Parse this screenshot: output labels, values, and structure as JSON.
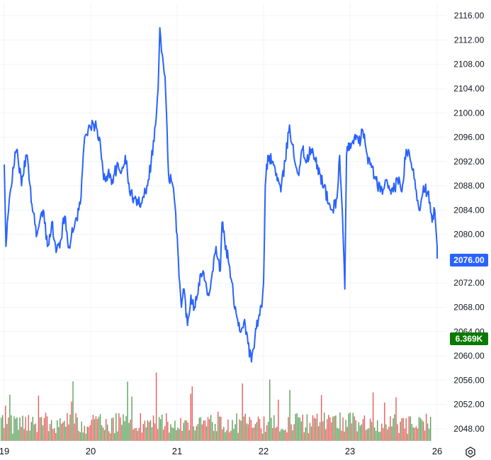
{
  "chart_data": {
    "type": "line",
    "x_labels": [
      "19",
      "20",
      "21",
      "22",
      "23",
      "26"
    ],
    "ylim": [
      2046,
      2118
    ],
    "y_ticks": [
      "2116.00",
      "2112.00",
      "2108.00",
      "2104.00",
      "2100.00",
      "2096.00",
      "2092.00",
      "2088.00",
      "2084.00",
      "2080.00",
      "2076.00",
      "2072.00",
      "2068.00",
      "2064.00",
      "2060.00",
      "2056.00",
      "2052.00",
      "2048.00"
    ],
    "price_anchors": [
      [
        0,
        2091.5
      ],
      [
        0.02,
        2078
      ],
      [
        0.05,
        2084
      ],
      [
        0.1,
        2091
      ],
      [
        0.15,
        2094
      ],
      [
        0.2,
        2088
      ],
      [
        0.25,
        2093
      ],
      [
        0.28,
        2091
      ],
      [
        0.32,
        2085
      ],
      [
        0.38,
        2080
      ],
      [
        0.45,
        2084
      ],
      [
        0.5,
        2078
      ],
      [
        0.55,
        2082
      ],
      [
        0.6,
        2077
      ],
      [
        0.65,
        2079
      ],
      [
        0.7,
        2083
      ],
      [
        0.75,
        2078
      ],
      [
        0.82,
        2082
      ],
      [
        0.88,
        2085
      ],
      [
        0.93,
        2096
      ],
      [
        0.98,
        2098
      ],
      [
        1.0,
        2097.5
      ],
      [
        1.05,
        2098
      ],
      [
        1.1,
        2096
      ],
      [
        1.15,
        2089
      ],
      [
        1.2,
        2090
      ],
      [
        1.25,
        2089
      ],
      [
        1.3,
        2091
      ],
      [
        1.35,
        2090
      ],
      [
        1.4,
        2093
      ],
      [
        1.45,
        2087
      ],
      [
        1.5,
        2086
      ],
      [
        1.55,
        2085
      ],
      [
        1.6,
        2086
      ],
      [
        1.65,
        2088
      ],
      [
        1.7,
        2092
      ],
      [
        1.75,
        2098
      ],
      [
        1.78,
        2104
      ],
      [
        1.8,
        2114
      ],
      [
        1.82,
        2110
      ],
      [
        1.86,
        2106
      ],
      [
        1.9,
        2090
      ],
      [
        1.95,
        2088
      ],
      [
        2.0,
        2080
      ],
      [
        2.03,
        2072
      ],
      [
        2.05,
        2068
      ],
      [
        2.08,
        2071
      ],
      [
        2.12,
        2065
      ],
      [
        2.16,
        2070
      ],
      [
        2.2,
        2068
      ],
      [
        2.25,
        2072
      ],
      [
        2.3,
        2074
      ],
      [
        2.35,
        2070
      ],
      [
        2.4,
        2073
      ],
      [
        2.45,
        2078
      ],
      [
        2.5,
        2074
      ],
      [
        2.52,
        2082
      ],
      [
        2.55,
        2079
      ],
      [
        2.6,
        2075
      ],
      [
        2.65,
        2070
      ],
      [
        2.7,
        2066
      ],
      [
        2.74,
        2064
      ],
      [
        2.78,
        2066
      ],
      [
        2.82,
        2062
      ],
      [
        2.86,
        2059
      ],
      [
        2.9,
        2063
      ],
      [
        2.94,
        2066
      ],
      [
        2.98,
        2068
      ],
      [
        3.0,
        2072
      ],
      [
        3.02,
        2088
      ],
      [
        3.05,
        2093
      ],
      [
        3.1,
        2092
      ],
      [
        3.15,
        2090
      ],
      [
        3.2,
        2087
      ],
      [
        3.25,
        2092
      ],
      [
        3.3,
        2098
      ],
      [
        3.35,
        2093
      ],
      [
        3.4,
        2090
      ],
      [
        3.45,
        2094
      ],
      [
        3.5,
        2092
      ],
      [
        3.55,
        2094
      ],
      [
        3.6,
        2092
      ],
      [
        3.65,
        2090
      ],
      [
        3.7,
        2088
      ],
      [
        3.75,
        2085
      ],
      [
        3.8,
        2084
      ],
      [
        3.85,
        2086
      ],
      [
        3.88,
        2093
      ],
      [
        3.92,
        2080
      ],
      [
        3.94,
        2071
      ],
      [
        3.96,
        2093
      ],
      [
        4.0,
        2095
      ],
      [
        4.05,
        2096
      ],
      [
        4.1,
        2095
      ],
      [
        4.15,
        2097
      ],
      [
        4.2,
        2093
      ],
      [
        4.25,
        2091
      ],
      [
        4.3,
        2089
      ],
      [
        4.35,
        2087
      ],
      [
        4.4,
        2088
      ],
      [
        4.45,
        2088
      ],
      [
        4.5,
        2087
      ],
      [
        4.55,
        2089
      ],
      [
        4.6,
        2087
      ],
      [
        4.65,
        2094
      ],
      [
        4.7,
        2092
      ],
      [
        4.75,
        2089
      ],
      [
        4.8,
        2084
      ],
      [
        4.85,
        2088
      ],
      [
        4.9,
        2087
      ],
      [
        4.95,
        2082
      ],
      [
        4.98,
        2084
      ],
      [
        5.0,
        2078
      ],
      [
        5.0,
        2076
      ]
    ],
    "last_price_label": "2076.00",
    "volume_label": "6.369K",
    "colors": {
      "line": "#2962ff",
      "vol_up": "#3d8f3d",
      "vol_down": "#e0413c",
      "grid": "#f0f3fa",
      "price_badge": "#2962ff",
      "volume_badge": "#0a7a00"
    },
    "grid": true
  },
  "toolbar": {
    "settings_icon": "gear-icon"
  }
}
